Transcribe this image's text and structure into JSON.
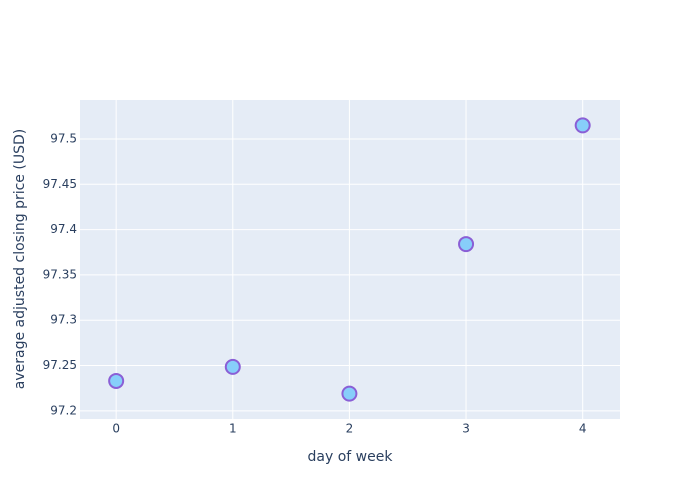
{
  "chart_data": {
    "type": "scatter",
    "x_label": "day of week",
    "y_label": "average adjusted closing price (USD)",
    "x": [
      0,
      1,
      2,
      3,
      4
    ],
    "series": [
      {
        "color": "#87cefa",
        "values": [
          97.233,
          97.2485,
          97.219,
          97.384,
          97.515
        ]
      }
    ],
    "marker_edge_color": "#8a5fd6",
    "xlim": [
      -0.31,
      4.32
    ],
    "xticks": [
      0,
      1,
      2,
      3,
      4
    ],
    "ylim": [
      97.191,
      97.543
    ],
    "yticks": [
      97.2,
      97.25,
      97.3,
      97.35,
      97.4,
      97.45,
      97.5
    ],
    "grid": true
  }
}
